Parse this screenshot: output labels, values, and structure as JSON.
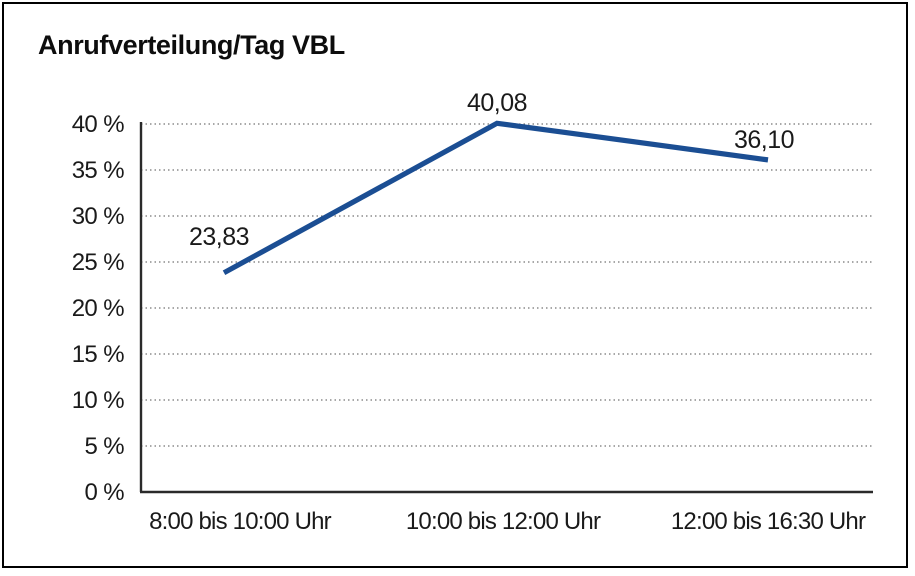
{
  "colors": {
    "line": "#1b4e93",
    "grid": "#757575",
    "axis": "#2a2a2a",
    "frame": "#000000",
    "text": "#1a1a1a",
    "background": "#ffffff"
  },
  "chart_data": {
    "type": "line",
    "title": "Anrufverteilung/Tag VBL",
    "categories": [
      "8:00 bis 10:00 Uhr",
      "10:00 bis 12:00 Uhr",
      "12:00 bis 16:30 Uhr"
    ],
    "series": [
      {
        "values": [
          23.83,
          40.08,
          36.1
        ],
        "value_labels": [
          "23,83",
          "40,08",
          "36,10"
        ]
      }
    ],
    "xlabel": "",
    "ylabel": "",
    "y_unit": "%",
    "ylim": [
      0,
      40
    ],
    "y_tick_step": 5,
    "y_tick_labels": [
      "0 %",
      "5 %",
      "10 %",
      "15 %",
      "20 %",
      "25 %",
      "30 %",
      "35 %",
      "40 %"
    ],
    "grid": "horizontal-dotted",
    "legend": "none"
  }
}
